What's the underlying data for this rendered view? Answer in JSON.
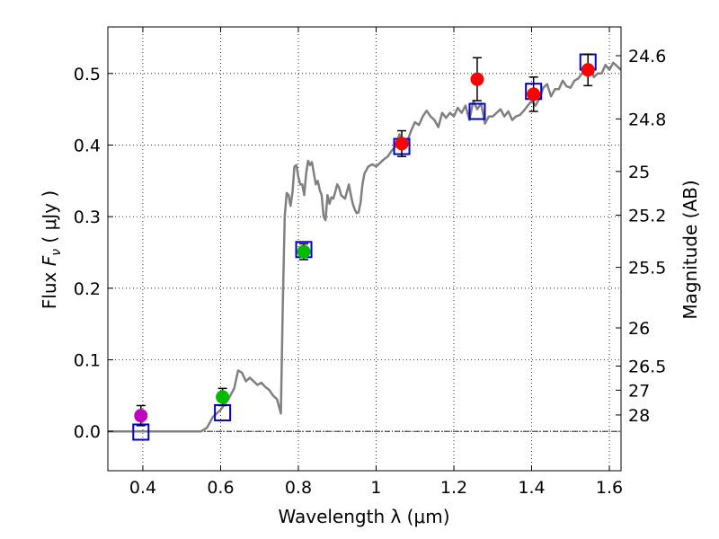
{
  "chart_data": {
    "type": "scatter",
    "xlabel": "Wavelength  λ (μm)",
    "ylabel": "Flux  F_ν  ( μJy )",
    "ylabel_parts": {
      "prefix": "Flux  ",
      "symbol": "F",
      "sub": "ν",
      "unit": "  ( μJy )"
    },
    "right_ylabel": "Magnitude (AB)",
    "xlim": [
      0.31,
      1.63
    ],
    "ylim": [
      -0.055,
      0.565
    ],
    "x_ticks": [
      0.4,
      0.6,
      0.8,
      1.0,
      1.2,
      1.4,
      1.6
    ],
    "x_tick_labels": [
      "0.4",
      "0.6",
      "0.8",
      "1",
      "1.2",
      "1.4",
      "1.6"
    ],
    "y_ticks": [
      0.0,
      0.1,
      0.2,
      0.3,
      0.4,
      0.5
    ],
    "y_tick_labels": [
      "0.0",
      "0.1",
      "0.2",
      "0.3",
      "0.4",
      "0.5"
    ],
    "magnitude_ticks": [
      24.6,
      24.8,
      25,
      25.2,
      25.5,
      26,
      26.5,
      27,
      28
    ],
    "magnitude_tick_labels": [
      "24.6",
      "24.8",
      "25",
      "25.2",
      "25.5",
      "26",
      "26.5",
      "27",
      "28"
    ],
    "grid": true,
    "zero_line": true,
    "colors": {
      "template": "#808080",
      "model_box": "#0000cc",
      "violet": "#bf00bf",
      "green": "#00bb00",
      "red": "#ff0000",
      "errorbar": "#000000"
    },
    "series": [
      {
        "name": "observed",
        "points": [
          {
            "x": 0.395,
            "y": 0.022,
            "err": 0.014,
            "color": "violet"
          },
          {
            "x": 0.605,
            "y": 0.048,
            "err": 0.012,
            "color": "green"
          },
          {
            "x": 0.814,
            "y": 0.251,
            "err": 0.011,
            "color": "green"
          },
          {
            "x": 1.066,
            "y": 0.402,
            "err": 0.018,
            "color": "red"
          },
          {
            "x": 1.26,
            "y": 0.492,
            "err": 0.03,
            "color": "red"
          },
          {
            "x": 1.405,
            "y": 0.471,
            "err": 0.024,
            "color": "red"
          },
          {
            "x": 1.545,
            "y": 0.505,
            "err": 0.022,
            "color": "red"
          }
        ]
      },
      {
        "name": "model",
        "points": [
          {
            "x": 0.395,
            "y": -0.001
          },
          {
            "x": 0.605,
            "y": 0.026
          },
          {
            "x": 0.814,
            "y": 0.254
          },
          {
            "x": 1.066,
            "y": 0.398
          },
          {
            "x": 1.26,
            "y": 0.447
          },
          {
            "x": 1.405,
            "y": 0.475
          },
          {
            "x": 1.545,
            "y": 0.516
          }
        ]
      },
      {
        "name": "template",
        "x": [
          0.31,
          0.55,
          0.565,
          0.58,
          0.6,
          0.62,
          0.635,
          0.645,
          0.655,
          0.665,
          0.675,
          0.685,
          0.695,
          0.705,
          0.715,
          0.725,
          0.735,
          0.745,
          0.755,
          0.76,
          0.765,
          0.77,
          0.775,
          0.78,
          0.785,
          0.79,
          0.795,
          0.8,
          0.805,
          0.81,
          0.815,
          0.82,
          0.825,
          0.83,
          0.835,
          0.84,
          0.845,
          0.85,
          0.855,
          0.86,
          0.865,
          0.87,
          0.875,
          0.88,
          0.885,
          0.89,
          0.895,
          0.9,
          0.905,
          0.91,
          0.92,
          0.93,
          0.935,
          0.94,
          0.945,
          0.95,
          0.955,
          0.96,
          0.965,
          0.97,
          0.98,
          0.99,
          1.0,
          1.01,
          1.02,
          1.03,
          1.04,
          1.05,
          1.06,
          1.07,
          1.08,
          1.09,
          1.1,
          1.11,
          1.12,
          1.13,
          1.14,
          1.15,
          1.16,
          1.17,
          1.18,
          1.19,
          1.2,
          1.21,
          1.22,
          1.23,
          1.24,
          1.25,
          1.26,
          1.27,
          1.28,
          1.29,
          1.3,
          1.31,
          1.32,
          1.33,
          1.34,
          1.35,
          1.36,
          1.37,
          1.38,
          1.39,
          1.4,
          1.41,
          1.42,
          1.43,
          1.44,
          1.45,
          1.46,
          1.47,
          1.48,
          1.49,
          1.5,
          1.51,
          1.52,
          1.53,
          1.54,
          1.55,
          1.56,
          1.57,
          1.58,
          1.59,
          1.6,
          1.61,
          1.62,
          1.63
        ],
        "y": [
          0.0,
          0.0,
          0.005,
          0.02,
          0.03,
          0.045,
          0.06,
          0.085,
          0.082,
          0.07,
          0.075,
          0.07,
          0.065,
          0.068,
          0.062,
          0.058,
          0.05,
          0.045,
          0.025,
          0.18,
          0.3,
          0.333,
          0.33,
          0.315,
          0.335,
          0.37,
          0.372,
          0.355,
          0.345,
          0.345,
          0.33,
          0.36,
          0.378,
          0.372,
          0.376,
          0.36,
          0.345,
          0.35,
          0.337,
          0.33,
          0.3,
          0.295,
          0.33,
          0.318,
          0.327,
          0.325,
          0.335,
          0.345,
          0.34,
          0.33,
          0.325,
          0.345,
          0.33,
          0.318,
          0.31,
          0.305,
          0.306,
          0.32,
          0.345,
          0.36,
          0.37,
          0.373,
          0.37,
          0.375,
          0.38,
          0.384,
          0.392,
          0.398,
          0.415,
          0.402,
          0.405,
          0.42,
          0.432,
          0.428,
          0.44,
          0.448,
          0.44,
          0.435,
          0.425,
          0.445,
          0.438,
          0.445,
          0.44,
          0.452,
          0.445,
          0.455,
          0.435,
          0.462,
          0.45,
          0.458,
          0.43,
          0.44,
          0.44,
          0.445,
          0.45,
          0.44,
          0.447,
          0.435,
          0.44,
          0.442,
          0.448,
          0.455,
          0.462,
          0.455,
          0.465,
          0.48,
          0.485,
          0.468,
          0.478,
          0.478,
          0.49,
          0.482,
          0.48,
          0.49,
          0.493,
          0.5,
          0.505,
          0.51,
          0.495,
          0.5,
          0.5,
          0.512,
          0.505,
          0.515,
          0.51,
          0.505
        ]
      }
    ]
  }
}
